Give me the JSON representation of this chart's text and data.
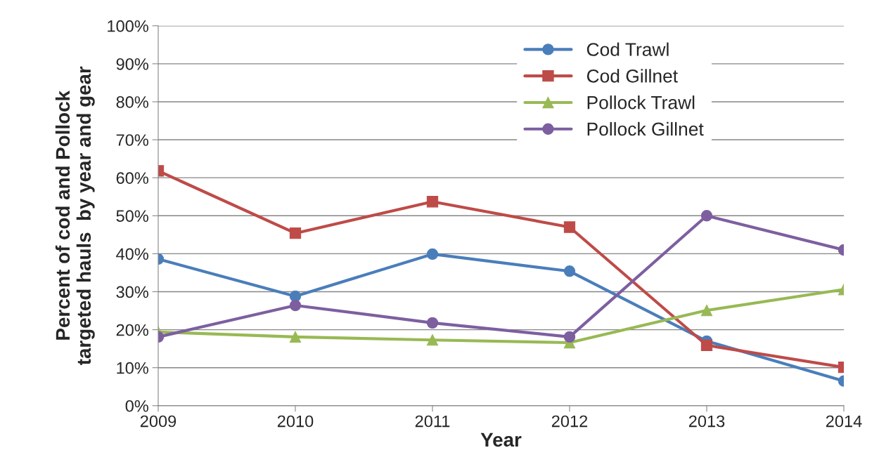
{
  "chart_data": {
    "type": "line",
    "xlabel": "Year",
    "ylabel": "Percent of cod and Pollock\ntargeted hauls  by year and gear",
    "categories": [
      "2009",
      "2010",
      "2011",
      "2012",
      "2013",
      "2014"
    ],
    "series": [
      {
        "name": "Cod Trawl",
        "color": "#4a7ebb",
        "marker": "circle",
        "values": [
          38.6,
          28.8,
          39.9,
          35.4,
          17.0,
          6.5
        ]
      },
      {
        "name": "Cod Gillnet",
        "color": "#be4b48",
        "marker": "square",
        "values": [
          61.8,
          45.4,
          53.7,
          47.0,
          15.9,
          10.1
        ]
      },
      {
        "name": "Pollock Trawl",
        "color": "#98b954",
        "marker": "triangle",
        "values": [
          19.4,
          18.1,
          17.3,
          16.6,
          25.1,
          30.6
        ]
      },
      {
        "name": "Pollock Gillnet",
        "color": "#7d5fa0",
        "marker": "circle",
        "values": [
          18.1,
          26.4,
          21.8,
          18.1,
          50.0,
          41.0
        ]
      }
    ],
    "ylim": [
      0,
      100
    ],
    "yticks": [
      {
        "value": 0,
        "label": "0%"
      },
      {
        "value": 10,
        "label": "10%"
      },
      {
        "value": 20,
        "label": "20%"
      },
      {
        "value": 30,
        "label": "30%"
      },
      {
        "value": 40,
        "label": "40%"
      },
      {
        "value": 50,
        "label": "50%"
      },
      {
        "value": 60,
        "label": "60%"
      },
      {
        "value": 70,
        "label": "70%"
      },
      {
        "value": 80,
        "label": "80%"
      },
      {
        "value": 90,
        "label": "90%"
      },
      {
        "value": 100,
        "label": "100%"
      }
    ],
    "grid": "y",
    "legend": "top right",
    "line_style": "solid"
  }
}
